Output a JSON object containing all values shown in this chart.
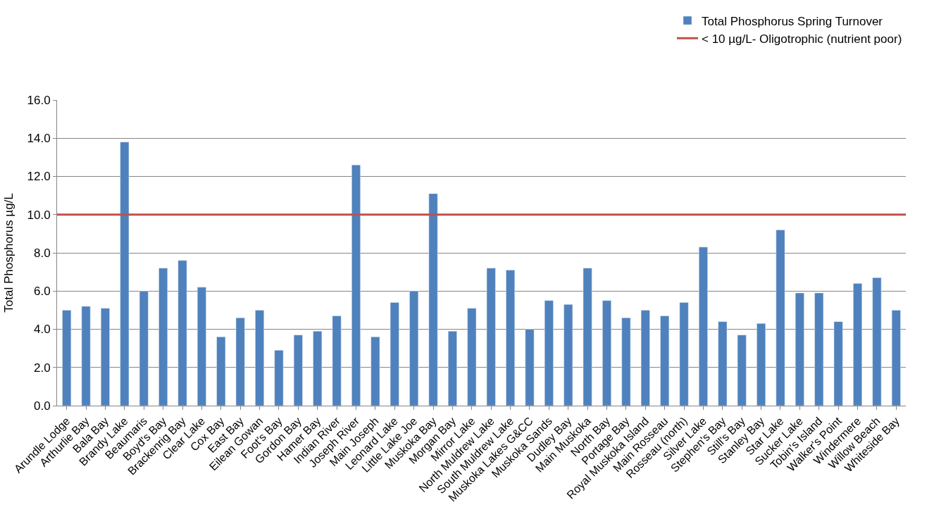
{
  "chart_data": {
    "type": "bar",
    "ylabel": "Total Phosphorus µg/L",
    "categories": [
      "Arundle Lodge",
      "Arthurlie Bay",
      "Bala Bay",
      "Brandy Lake",
      "Beaumaris",
      "Boyd's Bay",
      "Brackenrig Bay",
      "Clear Lake",
      "Cox Bay",
      "East Bay",
      "Eilean Gowan",
      "Foot's Bay",
      "Gordon Bay",
      "Hamer Bay",
      "Indian River",
      "Joseph River",
      "Main Joseph",
      "Leonard Lake",
      "Little Lake Joe",
      "Muskoka Bay",
      "Morgan Bay",
      "Mirror Lake",
      "North Muldrew Lake",
      "South Muldrew Lake",
      "Muskoka Lakes G&CC",
      "Muskoka Sands",
      "Dudley Bay",
      "Main Muskoka",
      "North Bay",
      "Portage Bay",
      "Royal Muskoka Island",
      "Main Rosseau",
      "Rosseau (north)",
      "Silver Lake",
      "Stephen's Bay",
      "Still's Bay",
      "Stanley Bay",
      "Star Lake",
      "Sucker Lake",
      "Tobin's Island",
      "Walker's Point",
      "Windermere",
      "Willow Beach",
      "Whiteside Bay"
    ],
    "series": [
      {
        "name": "Total Phosphorus Spring Turnover",
        "color": "#4f81bd",
        "values": [
          5.0,
          5.2,
          5.1,
          13.8,
          6.0,
          7.2,
          7.6,
          6.2,
          3.6,
          4.6,
          5.0,
          2.9,
          3.7,
          3.9,
          4.7,
          12.6,
          3.6,
          5.4,
          6.0,
          11.1,
          3.9,
          5.1,
          7.2,
          7.1,
          4.0,
          5.5,
          5.3,
          7.2,
          5.5,
          4.6,
          5.0,
          4.7,
          5.4,
          8.3,
          4.4,
          3.7,
          4.3,
          9.2,
          5.9,
          5.9,
          4.4,
          6.4,
          6.7,
          5.0
        ]
      }
    ],
    "ref_lines": [
      {
        "axis": "y",
        "value": 10,
        "label": "< 10 µg/L- Oligotrophic (nutrient poor)",
        "color": "#c0504d",
        "line_style": "solid"
      }
    ],
    "ylim": [
      0,
      16
    ],
    "yticks": [
      {
        "value": 0,
        "label": "0.0"
      },
      {
        "value": 2,
        "label": "2.0"
      },
      {
        "value": 4,
        "label": "4.0"
      },
      {
        "value": 6,
        "label": "6.0"
      },
      {
        "value": 8,
        "label": "8.0"
      },
      {
        "value": 10,
        "label": "10.0"
      },
      {
        "value": 12,
        "label": "12.0"
      },
      {
        "value": 14,
        "label": "14.0"
      },
      {
        "value": 16,
        "label": "16.0"
      }
    ],
    "grid": "y",
    "legend": "top right"
  }
}
